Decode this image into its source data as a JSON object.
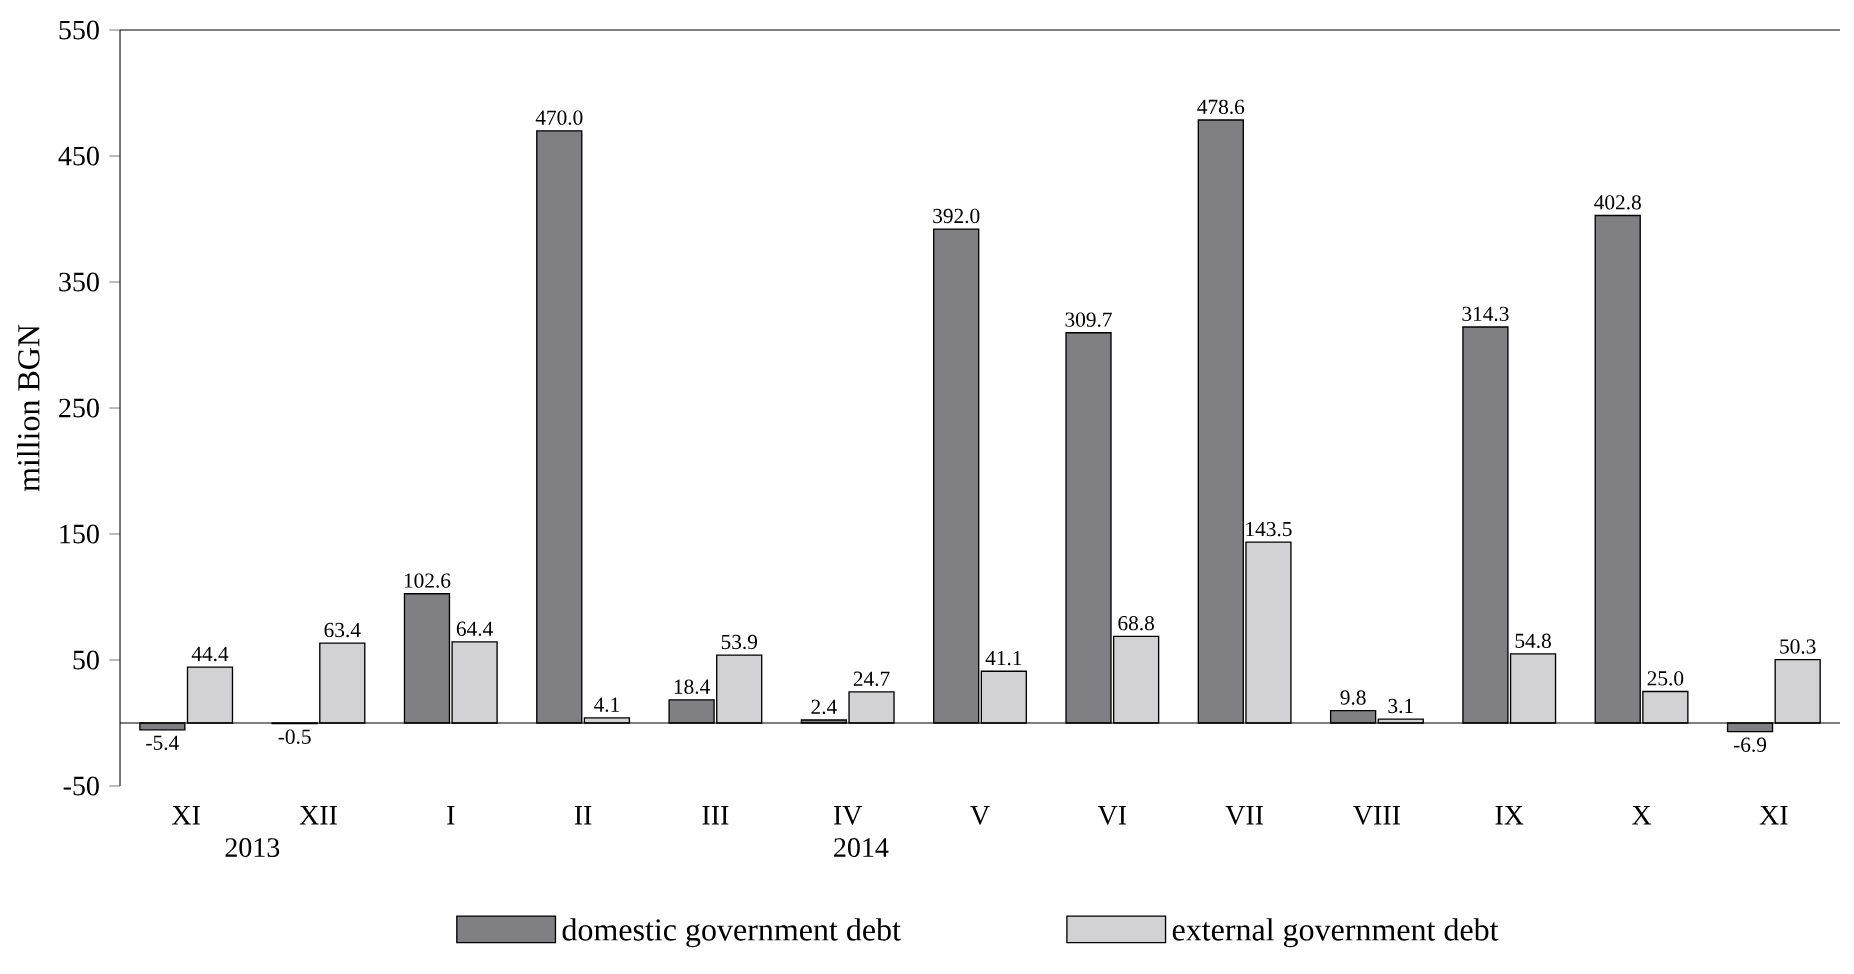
{
  "chart_data": {
    "type": "bar",
    "ylabel": "million BGN",
    "categories": [
      "XI",
      "XII",
      "I",
      "II",
      "III",
      "IV",
      "V",
      "VI",
      "VII",
      "VIII",
      "IX",
      "X",
      "XI"
    ],
    "series": [
      {
        "name": "domestic government debt",
        "color": "#808084",
        "values": [
          -5.4,
          -0.5,
          102.6,
          470.0,
          18.4,
          2.4,
          392.0,
          309.7,
          478.6,
          9.8,
          314.3,
          402.8,
          -6.9
        ],
        "value_labels": [
          "-5.4",
          "-0.5",
          "102.6",
          "470.0",
          "18.4",
          "2.4",
          "392.0",
          "309.7",
          "478.6",
          "9.8",
          "314.3",
          "402.8",
          "-6.9"
        ]
      },
      {
        "name": "external government debt",
        "color": "#d2d2d4",
        "values": [
          44.4,
          63.4,
          64.4,
          4.1,
          53.9,
          24.7,
          41.1,
          68.8,
          143.5,
          3.1,
          54.8,
          25.0,
          50.3
        ],
        "value_labels": [
          "44.4",
          "63.4",
          "64.4",
          "4.1",
          "53.9",
          "24.7",
          "41.1",
          "68.8",
          "143.5",
          "3.1",
          "54.8",
          "25.0",
          "50.3"
        ]
      }
    ],
    "ylim": [
      -50,
      550
    ],
    "yticks": [
      -50,
      50,
      150,
      250,
      350,
      450,
      550
    ],
    "legend": "bottom",
    "annotations": [
      "2013",
      "2014"
    ]
  }
}
